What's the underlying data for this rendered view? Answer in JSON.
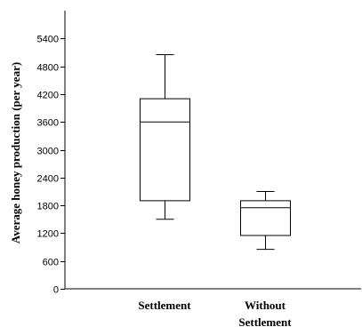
{
  "chart_data": {
    "type": "boxplot",
    "title": "",
    "xlabel": "",
    "ylabel": "Average honey production (per year)",
    "ylim": [
      0,
      6000
    ],
    "yticks": [
      0,
      600,
      1200,
      1800,
      2400,
      3000,
      3600,
      4200,
      4800,
      5400
    ],
    "grid": false,
    "legend": "none",
    "categories": [
      {
        "label": "Settlement",
        "lines": [
          "Settlement"
        ]
      },
      {
        "label": "Without Settlement",
        "lines": [
          "Without",
          "Settlement"
        ]
      }
    ],
    "series": [
      {
        "category": "Settlement",
        "min": 1500,
        "q1": 1900,
        "median": 3600,
        "q3": 4100,
        "max": 5050
      },
      {
        "category": "Without Settlement",
        "min": 850,
        "q1": 1150,
        "median": 1750,
        "q3": 1900,
        "max": 2100
      }
    ],
    "colors": {
      "axis": "#000000",
      "box_stroke": "#000000",
      "box_fill": "#ffffff"
    }
  }
}
